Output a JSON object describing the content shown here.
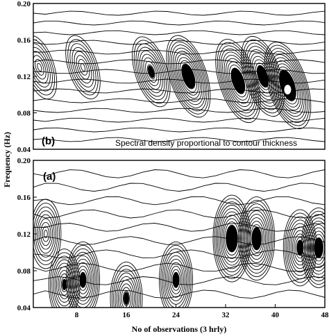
{
  "chart_data": [
    {
      "panel": "(b)",
      "type": "contour",
      "annotation": "Spectral density proportional to contour thickness",
      "ylabel": "Frequency (Hz)",
      "ylim": [
        0.04,
        0.2
      ],
      "y_ticks": [
        "0.04",
        "0.08",
        "0.12",
        "0.16",
        "0.20"
      ],
      "xlim": [
        1,
        48
      ],
      "peaks": [
        {
          "x": 2,
          "y": 0.13,
          "strength": 0.3
        },
        {
          "x": 9,
          "y": 0.13,
          "strength": 0.3
        },
        {
          "x": 20,
          "y": 0.125,
          "strength": 0.5
        },
        {
          "x": 26,
          "y": 0.12,
          "strength": 0.85
        },
        {
          "x": 34,
          "y": 0.115,
          "strength": 0.9
        },
        {
          "x": 38,
          "y": 0.12,
          "strength": 0.8
        },
        {
          "x": 42,
          "y": 0.11,
          "strength": 1.0
        }
      ]
    },
    {
      "panel": "(a)",
      "type": "contour",
      "xlabel": "No of observations (3 hrly)",
      "ylabel": "Frequency (Hz)",
      "ylim": [
        0.04,
        0.2
      ],
      "y_ticks": [
        "0.04",
        "0.08",
        "0.12",
        "0.16",
        "0.20"
      ],
      "xlim": [
        1,
        48
      ],
      "x_ticks": [
        "8",
        "16",
        "24",
        "32",
        "40",
        "48"
      ],
      "peaks": [
        {
          "x": 3,
          "y": 0.12,
          "strength": 0.4
        },
        {
          "x": 6,
          "y": 0.065,
          "strength": 0.45
        },
        {
          "x": 9,
          "y": 0.07,
          "strength": 0.6
        },
        {
          "x": 16,
          "y": 0.05,
          "strength": 0.5
        },
        {
          "x": 24,
          "y": 0.07,
          "strength": 0.6
        },
        {
          "x": 33,
          "y": 0.115,
          "strength": 0.9
        },
        {
          "x": 37,
          "y": 0.115,
          "strength": 0.8
        },
        {
          "x": 44,
          "y": 0.105,
          "strength": 0.6
        },
        {
          "x": 47,
          "y": 0.105,
          "strength": 0.7
        }
      ]
    }
  ]
}
